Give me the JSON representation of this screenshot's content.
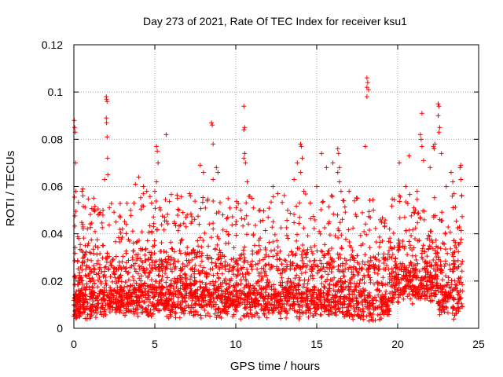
{
  "chart_data": {
    "type": "scatter",
    "title": "Day 273 of 2021, Rate Of TEC Index for receiver ksu1",
    "xlabel": "GPS time / hours",
    "ylabel": "ROTI / TECUs",
    "xlim": [
      0,
      25
    ],
    "ylim": [
      0,
      0.12
    ],
    "x_ticks": [
      0,
      5,
      10,
      15,
      20,
      25
    ],
    "y_ticks": [
      0,
      0.02,
      0.04,
      0.06,
      0.08,
      0.1,
      0.12
    ],
    "x_tick_labels": [
      "0",
      "5",
      "10",
      "15",
      "20",
      "25"
    ],
    "y_tick_labels": [
      "0",
      "0.02",
      "0.04",
      "0.06",
      "0.08",
      "0.1",
      "0.12"
    ],
    "grid": true,
    "marker": "plus",
    "series": [
      {
        "name": "ksu1 ROTI",
        "color": "#ff0000",
        "points": [
          [
            0.02,
            0.088
          ],
          [
            0.05,
            0.085
          ],
          [
            0.08,
            0.083
          ],
          [
            0.1,
            0.07
          ],
          [
            0.12,
            0.058
          ],
          [
            0.3,
            0.038
          ],
          [
            0.5,
            0.058
          ],
          [
            0.55,
            0.059
          ],
          [
            0.7,
            0.035
          ],
          [
            0.9,
            0.036
          ],
          [
            1.3,
            0.05
          ],
          [
            1.5,
            0.048
          ],
          [
            1.8,
            0.05
          ],
          [
            1.9,
            0.063
          ],
          [
            2.0,
            0.098
          ],
          [
            2.02,
            0.097
          ],
          [
            2.05,
            0.096
          ],
          [
            2.0,
            0.089
          ],
          [
            2.02,
            0.087
          ],
          [
            2.05,
            0.081
          ],
          [
            2.08,
            0.072
          ],
          [
            2.1,
            0.065
          ],
          [
            2.6,
            0.045
          ],
          [
            3.0,
            0.042
          ],
          [
            3.5,
            0.05
          ],
          [
            3.8,
            0.061
          ],
          [
            4.0,
            0.064
          ],
          [
            4.3,
            0.06
          ],
          [
            4.5,
            0.058
          ],
          [
            4.8,
            0.053
          ],
          [
            5.0,
            0.058
          ],
          [
            5.1,
            0.077
          ],
          [
            5.15,
            0.075
          ],
          [
            5.2,
            0.07
          ],
          [
            5.1,
            0.062
          ],
          [
            5.3,
            0.051
          ],
          [
            5.7,
            0.082
          ],
          [
            6.2,
            0.045
          ],
          [
            6.5,
            0.05
          ],
          [
            7.0,
            0.048
          ],
          [
            7.8,
            0.069
          ],
          [
            8.0,
            0.066
          ],
          [
            8.5,
            0.087
          ],
          [
            8.55,
            0.086
          ],
          [
            8.6,
            0.078
          ],
          [
            8.6,
            0.063
          ],
          [
            8.8,
            0.068
          ],
          [
            8.9,
            0.066
          ],
          [
            9.2,
            0.048
          ],
          [
            9.5,
            0.047
          ],
          [
            10.0,
            0.044
          ],
          [
            10.3,
            0.05
          ],
          [
            10.5,
            0.094
          ],
          [
            10.55,
            0.085
          ],
          [
            10.5,
            0.084
          ],
          [
            10.55,
            0.074
          ],
          [
            10.5,
            0.072
          ],
          [
            10.6,
            0.07
          ],
          [
            10.7,
            0.062
          ],
          [
            11.0,
            0.055
          ],
          [
            11.5,
            0.05
          ],
          [
            12.0,
            0.047
          ],
          [
            12.3,
            0.06
          ],
          [
            12.6,
            0.057
          ],
          [
            13.2,
            0.05
          ],
          [
            13.6,
            0.063
          ],
          [
            13.8,
            0.07
          ],
          [
            14.0,
            0.078
          ],
          [
            14.05,
            0.077
          ],
          [
            14.1,
            0.072
          ],
          [
            14.0,
            0.066
          ],
          [
            14.2,
            0.058
          ],
          [
            14.6,
            0.053
          ],
          [
            15.0,
            0.06
          ],
          [
            15.3,
            0.074
          ],
          [
            15.6,
            0.068
          ],
          [
            16.0,
            0.07
          ],
          [
            16.3,
            0.076
          ],
          [
            16.35,
            0.074
          ],
          [
            16.4,
            0.068
          ],
          [
            16.3,
            0.066
          ],
          [
            16.4,
            0.062
          ],
          [
            16.5,
            0.058
          ],
          [
            17.0,
            0.058
          ],
          [
            17.5,
            0.055
          ],
          [
            18.0,
            0.077
          ],
          [
            18.1,
            0.106
          ],
          [
            18.15,
            0.104
          ],
          [
            18.1,
            0.102
          ],
          [
            18.2,
            0.101
          ],
          [
            18.1,
            0.098
          ],
          [
            18.5,
            0.05
          ],
          [
            19.0,
            0.045
          ],
          [
            19.5,
            0.042
          ],
          [
            20.1,
            0.07
          ],
          [
            20.5,
            0.06
          ],
          [
            20.7,
            0.073
          ],
          [
            21.0,
            0.051
          ],
          [
            21.2,
            0.058
          ],
          [
            21.5,
            0.091
          ],
          [
            21.4,
            0.082
          ],
          [
            21.45,
            0.08
          ],
          [
            21.5,
            0.077
          ],
          [
            21.6,
            0.071
          ],
          [
            22.0,
            0.068
          ],
          [
            22.2,
            0.077
          ],
          [
            22.3,
            0.078
          ],
          [
            22.25,
            0.076
          ],
          [
            22.5,
            0.095
          ],
          [
            22.55,
            0.094
          ],
          [
            22.5,
            0.09
          ],
          [
            22.6,
            0.085
          ],
          [
            22.55,
            0.083
          ],
          [
            22.7,
            0.074
          ],
          [
            23.0,
            0.06
          ],
          [
            23.3,
            0.066
          ],
          [
            23.4,
            0.062
          ],
          [
            23.9,
            0.069
          ],
          [
            23.85,
            0.068
          ],
          [
            23.9,
            0.063
          ],
          [
            23.95,
            0.056
          ]
        ]
      }
    ],
    "data_density_note": "Thousands of additional ROTI samples lie densely between 0.003 and 0.03 TECU across 0-24 h, plus a spiky band up to ~0.06 at intervals"
  }
}
